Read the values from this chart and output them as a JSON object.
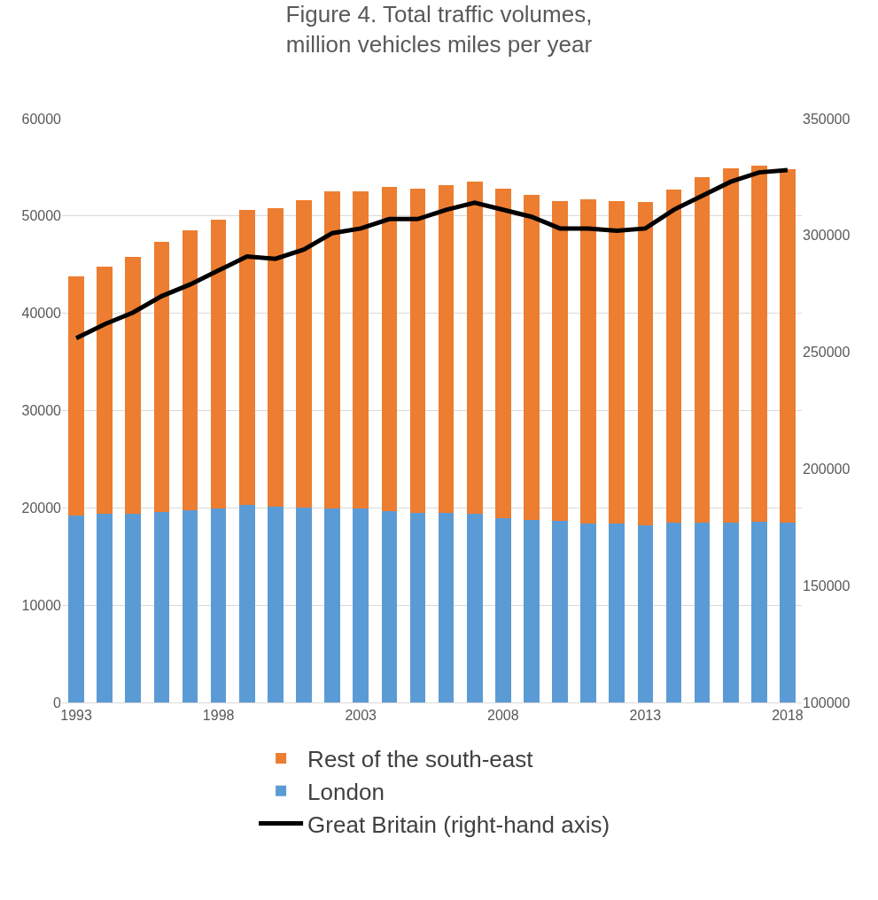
{
  "chart_data": {
    "type": "bar",
    "stacked": true,
    "title": "Figure 4. Total traffic volumes,\nmillion vehicles miles per year",
    "categories": [
      "1993",
      null,
      null,
      null,
      null,
      "1998",
      null,
      null,
      null,
      null,
      "2003",
      null,
      null,
      null,
      null,
      "2008",
      null,
      null,
      null,
      null,
      "2013",
      null,
      null,
      null,
      null,
      "2018"
    ],
    "series": [
      {
        "name": "London",
        "color": "#5b9bd5",
        "values": [
          19200,
          19400,
          19400,
          19600,
          19800,
          19900,
          20300,
          20100,
          20000,
          19900,
          19900,
          19700,
          19500,
          19500,
          19400,
          18900,
          18800,
          18700,
          18400,
          18400,
          18200,
          18500,
          18500,
          18500,
          18600,
          18500
        ]
      },
      {
        "name": "Rest of the south-east",
        "color": "#ed7d31",
        "values": [
          24600,
          25400,
          26400,
          27700,
          28700,
          29700,
          30300,
          30700,
          31600,
          32600,
          32600,
          33300,
          33300,
          33700,
          34100,
          33900,
          33400,
          32800,
          33300,
          33100,
          33200,
          34200,
          35500,
          36400,
          36600,
          36300
        ]
      },
      {
        "name": "Great Britain (right-hand axis)",
        "type": "line",
        "axis": "y2",
        "color": "#000000",
        "values": [
          256000,
          262000,
          267000,
          274000,
          279000,
          285000,
          291000,
          290000,
          294000,
          301000,
          303000,
          307000,
          307000,
          311000,
          314000,
          311000,
          308000,
          303000,
          303000,
          302000,
          303000,
          311000,
          317000,
          323000,
          327000,
          328000
        ]
      }
    ],
    "ylim": [
      0,
      60000
    ],
    "yticks": [
      0,
      10000,
      20000,
      30000,
      40000,
      50000,
      60000
    ],
    "y2lim": [
      100000,
      350000
    ],
    "y2ticks": [
      100000,
      150000,
      200000,
      250000,
      300000,
      350000
    ],
    "grid": "y",
    "legend": "bottom",
    "marker": "none",
    "line_style": "solid"
  }
}
